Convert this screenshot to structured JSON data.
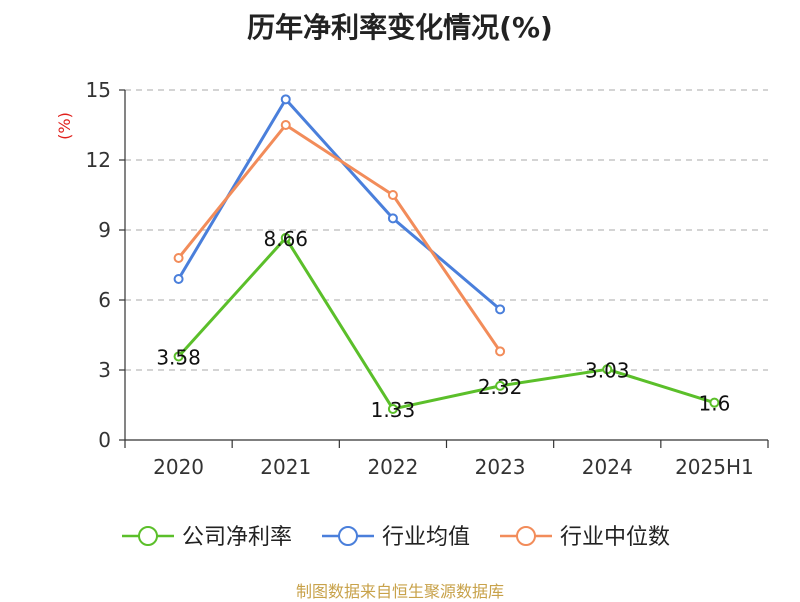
{
  "title": "历年净利率变化情况(%)",
  "source": "制图数据来自恒生聚源数据库",
  "chart_data": {
    "type": "line",
    "title": "历年净利率变化情况(%)",
    "ylabel": "(%)",
    "categories": [
      "2020",
      "2021",
      "2022",
      "2023",
      "2024",
      "2025H1"
    ],
    "ylim": [
      0,
      15
    ],
    "yticks": [
      0,
      3,
      6,
      9,
      12,
      15
    ],
    "grid": true,
    "legend_position": "bottom",
    "series": [
      {
        "name": "公司净利率",
        "color": "#5bbf2a",
        "values": [
          3.58,
          8.66,
          1.33,
          2.32,
          3.03,
          1.6
        ],
        "labels": [
          "3.58",
          "8.66",
          "1.33",
          "2.32",
          "3.03",
          "1.6"
        ]
      },
      {
        "name": "行业均值",
        "color": "#4a7fdb",
        "values": [
          6.9,
          14.6,
          9.5,
          5.6,
          null,
          null
        ]
      },
      {
        "name": "行业中位数",
        "color": "#f28c5a",
        "values": [
          7.8,
          13.5,
          10.5,
          3.8,
          null,
          null
        ]
      }
    ]
  }
}
